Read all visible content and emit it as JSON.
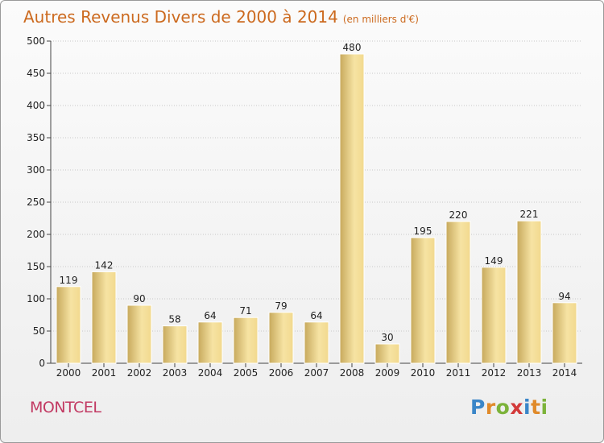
{
  "title": "Autres Revenus Divers de 2000 à 2014",
  "subtitle": "(en milliers d'€)",
  "place": "MONTCEL",
  "logo": {
    "text": "Proxiti",
    "colors": [
      "#3a86c8",
      "#e08a2a",
      "#7cb33a",
      "#d33a3a",
      "#3a86c8",
      "#e08a2a",
      "#7cb33a"
    ]
  },
  "colors": {
    "title": "#cc6a1f",
    "place": "#c23a63",
    "bar_light": "#f6e3a3",
    "bar_dark": "#c7a95c",
    "bar_stroke": "#ffffff",
    "grid": "#c8c8c8"
  },
  "chart_data": {
    "type": "bar",
    "title": "Autres Revenus Divers de 2000 à 2014",
    "subtitle": "(en milliers d'€)",
    "xlabel": "",
    "ylabel": "",
    "categories": [
      "2000",
      "2001",
      "2002",
      "2003",
      "2004",
      "2005",
      "2006",
      "2007",
      "2008",
      "2009",
      "2010",
      "2011",
      "2012",
      "2013",
      "2014"
    ],
    "values": [
      119,
      142,
      90,
      58,
      64,
      71,
      79,
      64,
      480,
      30,
      195,
      220,
      149,
      221,
      94
    ],
    "ylim": [
      0,
      500
    ],
    "yticks": [
      0,
      50,
      100,
      150,
      200,
      250,
      300,
      350,
      400,
      450,
      500
    ],
    "grid": true,
    "data_labels": true
  }
}
